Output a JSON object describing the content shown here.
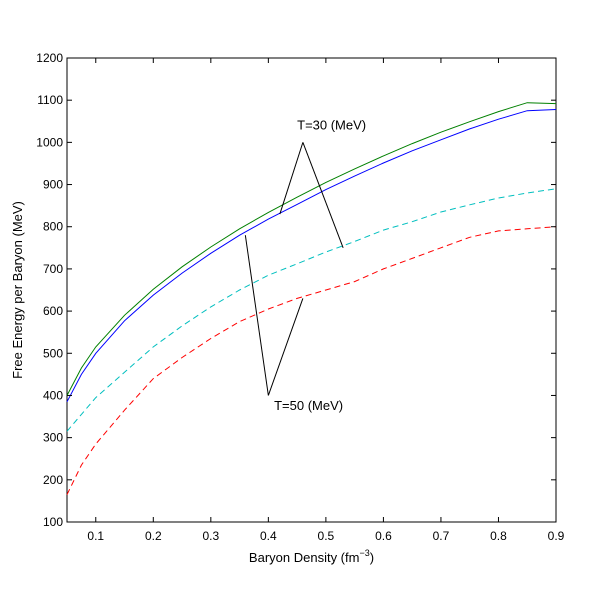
{
  "chart_data": {
    "type": "line",
    "title": "",
    "xlabel": "Baryon Density (fm",
    "xlabel_sup": "−3",
    "xlabel_end": ")",
    "ylabel": "Free Energy per Baryon (MeV)",
    "xlim": [
      0.05,
      0.9
    ],
    "ylim": [
      100,
      1200
    ],
    "xticks": [
      0.1,
      0.2,
      0.3,
      0.4,
      0.5,
      0.6,
      0.7,
      0.8,
      0.9
    ],
    "yticks": [
      100,
      200,
      300,
      400,
      500,
      600,
      700,
      800,
      900,
      1000,
      1100,
      1200
    ],
    "grid": false,
    "legend": "none",
    "x": [
      0.05,
      0.075,
      0.1,
      0.15,
      0.2,
      0.25,
      0.3,
      0.35,
      0.4,
      0.45,
      0.5,
      0.55,
      0.6,
      0.65,
      0.7,
      0.75,
      0.8,
      0.85,
      0.9
    ],
    "series": [
      {
        "color": "#008000",
        "dash": "solid",
        "values": [
          400,
          465,
          515,
          590,
          652,
          705,
          752,
          795,
          834,
          870,
          905,
          937,
          968,
          997,
          1024,
          1049,
          1073,
          1094,
          1092
        ]
      },
      {
        "color": "#0000ff",
        "dash": "solid",
        "values": [
          385,
          450,
          500,
          577,
          638,
          690,
          737,
          780,
          818,
          853,
          888,
          920,
          951,
          980,
          1006,
          1032,
          1055,
          1075,
          1078
        ]
      },
      {
        "color": "#00bfbf",
        "dash": "dashed",
        "values": [
          315,
          355,
          395,
          455,
          515,
          565,
          610,
          650,
          685,
          712,
          740,
          765,
          792,
          812,
          835,
          852,
          868,
          880,
          890
        ]
      },
      {
        "color": "#ff0000",
        "dash": "dashed",
        "values": [
          165,
          235,
          285,
          365,
          440,
          490,
          535,
          575,
          605,
          630,
          650,
          670,
          700,
          725,
          750,
          775,
          790,
          795,
          800
        ]
      }
    ],
    "annotations": [
      {
        "text": "T=30 (MeV)",
        "x": 0.51,
        "y": 1030,
        "arrows": [
          [
            0.42,
            830
          ],
          [
            0.53,
            750
          ]
        ],
        "vertex": [
          0.46,
          1000
        ]
      },
      {
        "text": "T=50 (MeV)",
        "x": 0.47,
        "y": 365,
        "arrows": [
          [
            0.36,
            780
          ],
          [
            0.46,
            630
          ]
        ],
        "vertex": [
          0.4,
          400
        ]
      }
    ]
  }
}
